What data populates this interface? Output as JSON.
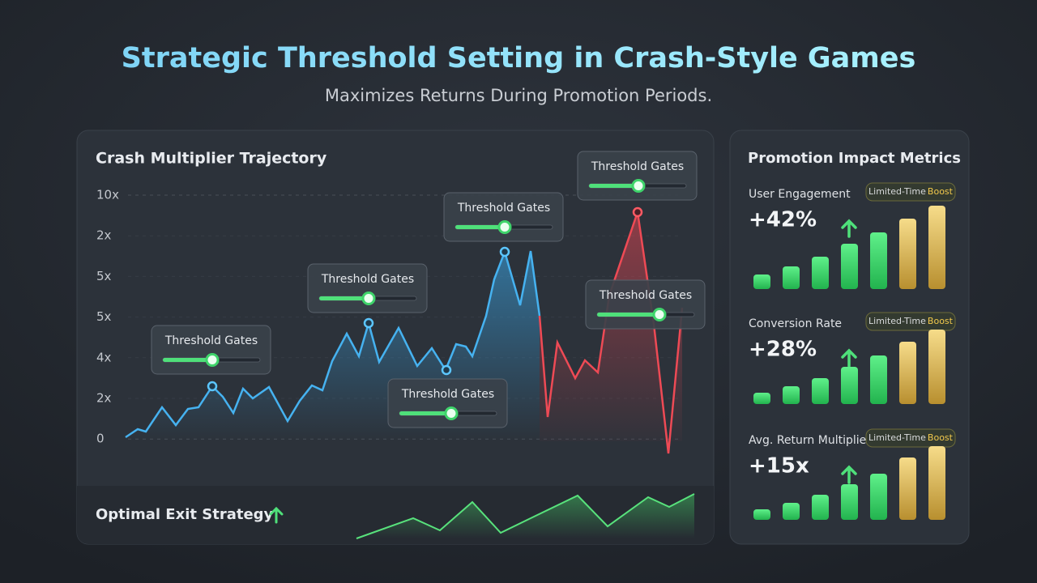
{
  "header": {
    "title": "Strategic Threshold Setting in Crash-Style Games",
    "subtitle": "Maximizes Returns During Promotion Periods."
  },
  "trajectory": {
    "title": "Crash Multiplier Trajectory",
    "axis_labels": [
      "10x",
      "2x",
      "5x",
      "5x",
      "4x",
      "2x",
      "0"
    ],
    "gates": [
      "Threshold Gates",
      "Threshold Gates",
      "Threshold Gates",
      "Threshold Gates",
      "Threshold Gates",
      "Threshold Gates"
    ],
    "footer": "Optimal Exit Strategy"
  },
  "metrics": {
    "title": "Promotion Impact Metrics",
    "items": [
      {
        "label": "User Engagement",
        "value": "+42%",
        "badge": "Limited-Time",
        "badge_highlight": "Boost"
      },
      {
        "label": "Conversion Rate",
        "value": "+28%",
        "badge": "Limited-Time",
        "badge_highlight": "Boost"
      },
      {
        "label": "Avg. Return Multiplier",
        "value": "+15x",
        "badge": "Limited-Time",
        "badge_highlight": "Boost"
      }
    ]
  }
}
